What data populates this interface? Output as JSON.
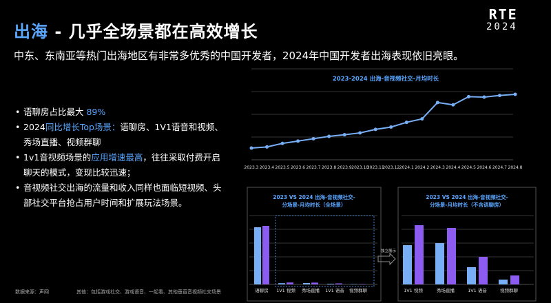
{
  "header": {
    "title_accent": "出海",
    "title_rest": " - 几乎全场景都在高效增长",
    "logo_text": "RTE",
    "logo_year": "2024"
  },
  "subtitle": "中东、东南亚等热门出海地区有非常多优秀的中国开发者，2024年中国开发者出海表现依旧亮眼。",
  "bullets": [
    {
      "parts": [
        {
          "t": "语聊房占比最大 "
        },
        {
          "t": "89%",
          "hl": true
        }
      ]
    },
    {
      "parts": [
        {
          "t": "2024"
        },
        {
          "t": "同比增长Top场景：",
          "hl": true
        },
        {
          "t": "语聊房、1V1语音和视频、秀场直播、视频群聊"
        }
      ]
    },
    {
      "parts": [
        {
          "t": "1v1音视频场景的"
        },
        {
          "t": "应用增速最高",
          "hl": true
        },
        {
          "t": "，往往采取付费开启聊天的模式，变现比较迅速；"
        }
      ]
    },
    {
      "parts": [
        {
          "t": "音视频社交出海的流量和收入同样也面临短视频、头部社交平台抢占用户时间和扩展玩法场景。"
        }
      ]
    }
  ],
  "footer": {
    "source": "数据来源：声网",
    "note": "其他：包括游戏社交、游戏语音、一起看、其他垂直音视频社交场景"
  },
  "arrow_label": "独立展示",
  "colors": {
    "accent": "#5aa6ff",
    "bar_2023": "#78aef5",
    "bar_2024": "#8c5cf0",
    "line": "#78aef5"
  },
  "chart_data": [
    {
      "type": "line",
      "title": "2023-2024 出海-音视频社交-月均时长",
      "x": [
        "2023.3",
        "2023.4",
        "2023.5",
        "2023.6",
        "2023.7",
        "2023.8",
        "2023.9",
        "2023.10",
        "2023.11",
        "2023.12",
        "2024.1",
        "2024.2",
        "2024.3",
        "2024.4",
        "2024.5",
        "2024.6",
        "2024.7",
        "2024.8"
      ],
      "series": [
        {
          "values": [
            1.0,
            1.5,
            3.0,
            4.0,
            5.0,
            6.0,
            6.7,
            7.5,
            9.0,
            10.0,
            12.0,
            13.5,
            20.5,
            19.5,
            23.0,
            22.8,
            23.5,
            24.0
          ]
        }
      ],
      "ylim": [
        -4,
        34
      ],
      "grid": true
    },
    {
      "type": "bar",
      "title": [
        "2023 VS 2024 出海-音视频社交-",
        "分场景-月均时长（全场景）"
      ],
      "categories": [
        "语聊房",
        "1V1 视频",
        "秀场直播",
        "1V1 语音",
        "视频群聊"
      ],
      "series": [
        {
          "values": [
            83,
            1.8,
            2.0,
            1.0,
            0.5
          ]
        },
        {
          "values": [
            85,
            2.8,
            2.6,
            1.5,
            0.6
          ]
        }
      ],
      "ylim": [
        0,
        100
      ],
      "grid": true
    },
    {
      "type": "bar",
      "title": [
        "2023 VS 2024 出海-音视频社交-",
        "分场景-月均时长（不含语聊房）"
      ],
      "categories": [
        "1V1 视频",
        "秀场直播",
        "1V1 语音",
        "视频群聊"
      ],
      "series": [
        {
          "values": [
            57,
            60,
            25,
            7
          ]
        },
        {
          "values": [
            86,
            82,
            40,
            13
          ]
        }
      ],
      "ylim": [
        0,
        100
      ],
      "grid": true
    }
  ]
}
